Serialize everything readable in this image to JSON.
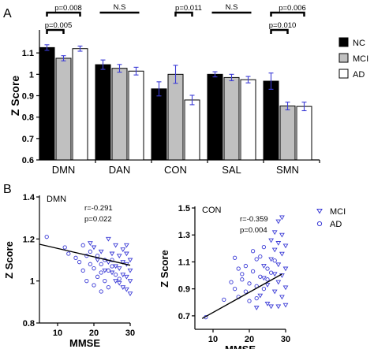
{
  "panel_labels": {
    "a": "A",
    "b": "B"
  },
  "chart_data": [
    {
      "type": "bar",
      "panel": "A",
      "categories": [
        "DMN",
        "DAN",
        "CON",
        "SAL",
        "SMN"
      ],
      "series": [
        {
          "name": "NC",
          "values": [
            1.125,
            1.045,
            0.932,
            1.0,
            0.968
          ],
          "errors": [
            0.013,
            0.022,
            0.033,
            0.012,
            0.038
          ],
          "color": "#000000"
        },
        {
          "name": "MCI",
          "values": [
            1.075,
            1.028,
            1.0,
            0.985,
            0.852
          ],
          "errors": [
            0.012,
            0.018,
            0.042,
            0.015,
            0.018
          ],
          "color": "#c0c0c0"
        },
        {
          "name": "AD",
          "values": [
            1.12,
            1.015,
            0.88,
            0.975,
            0.85
          ],
          "errors": [
            0.012,
            0.018,
            0.022,
            0.015,
            0.02
          ],
          "color": "#ffffff"
        }
      ],
      "ylabel": "Z Score",
      "ylim": [
        0.6,
        1.2
      ],
      "yticks": [
        "0.6",
        "0.7",
        "0.8",
        "0.9",
        "1",
        "1.1"
      ],
      "error_bar_color": "#3b3bd6",
      "legend_position": "right",
      "significance": [
        {
          "category": "DMN",
          "pairs": [
            {
              "from": "NC",
              "to": "AD",
              "label": "p=0.008"
            },
            {
              "from": "NC",
              "to": "MCI",
              "label": "p=0.005"
            }
          ]
        },
        {
          "category": "DAN",
          "label": "N.S"
        },
        {
          "category": "CON",
          "pairs": [
            {
              "from": "MCI",
              "to": "AD",
              "label": "p=0.011"
            }
          ]
        },
        {
          "category": "SAL",
          "label": "N.S"
        },
        {
          "category": "SMN",
          "pairs": [
            {
              "from": "NC",
              "to": "AD",
              "label": "p=0.006"
            },
            {
              "from": "NC",
              "to": "MCI",
              "label": "p=0.010"
            }
          ]
        }
      ]
    },
    {
      "type": "scatter",
      "panel": "B-left",
      "title": "DMN",
      "xlabel": "MMSE",
      "ylabel": "Z Score",
      "xlim": [
        5,
        30
      ],
      "ylim": [
        0.8,
        1.4
      ],
      "xticks": [
        "10",
        "20",
        "30"
      ],
      "yticks": [
        "0.8",
        "1",
        "1.2",
        "1.4"
      ],
      "annotation": [
        "r=-0.291",
        "p=0.022"
      ],
      "regression": {
        "x": [
          5,
          30
        ],
        "y": [
          1.175,
          1.075
        ]
      },
      "color": "#3b3bd6",
      "series": [
        {
          "name": "MCI",
          "marker": "triangle-down",
          "points": [
            [
              19,
              1.18
            ],
            [
              20,
              1.16
            ],
            [
              21,
              1.1
            ],
            [
              22,
              1.14
            ],
            [
              23,
              1.05
            ],
            [
              24,
              1.2
            ],
            [
              24,
              1.09
            ],
            [
              25,
              1.13
            ],
            [
              25,
              1.04
            ],
            [
              26,
              1.17
            ],
            [
              26,
              1.07
            ],
            [
              26,
              1.0
            ],
            [
              27,
              1.12
            ],
            [
              27,
              1.06
            ],
            [
              27,
              0.99
            ],
            [
              28,
              1.15
            ],
            [
              28,
              1.09
            ],
            [
              28,
              1.03
            ],
            [
              28,
              0.97
            ],
            [
              29,
              1.13
            ],
            [
              29,
              1.08
            ],
            [
              29,
              1.02
            ],
            [
              29,
              0.96
            ],
            [
              29,
              1.17
            ],
            [
              30,
              1.1
            ],
            [
              30,
              1.05
            ],
            [
              30,
              1.0
            ],
            [
              30,
              0.94
            ]
          ]
        },
        {
          "name": "AD",
          "marker": "circle",
          "points": [
            [
              7,
              1.21
            ],
            [
              12,
              1.16
            ],
            [
              13,
              1.13
            ],
            [
              15,
              1.11
            ],
            [
              16,
              1.09
            ],
            [
              17,
              1.05
            ],
            [
              17,
              1.17
            ],
            [
              18,
              1.12
            ],
            [
              18,
              1.0
            ],
            [
              19,
              1.08
            ],
            [
              19,
              1.14
            ],
            [
              20,
              1.06
            ],
            [
              20,
              0.98
            ],
            [
              21,
              1.12
            ],
            [
              21,
              1.02
            ],
            [
              22,
              1.08
            ],
            [
              22,
              1.04
            ],
            [
              22,
              0.95
            ],
            [
              23,
              1.1
            ],
            [
              23,
              1.0
            ],
            [
              24,
              1.05
            ],
            [
              24,
              0.97
            ],
            [
              25,
              1.07
            ],
            [
              25,
              1.1
            ],
            [
              26,
              1.03
            ],
            [
              27,
              1.01
            ]
          ]
        }
      ]
    },
    {
      "type": "scatter",
      "panel": "B-right",
      "title": "CON",
      "xlabel": "MMSE",
      "ylabel": "Z Score",
      "xlim": [
        5,
        30
      ],
      "ylim": [
        0.6,
        1.5
      ],
      "xticks": [
        "10",
        "20",
        "30"
      ],
      "yticks": [
        "0.7",
        "0.9",
        "1.1",
        "1.3",
        "1.5"
      ],
      "annotation": [
        "r=-0.359",
        "p=0.004"
      ],
      "regression": {
        "x": [
          7,
          29
        ],
        "y": [
          0.68,
          1.01
        ]
      },
      "color": "#3b3bd6",
      "series": [
        {
          "name": "MCI",
          "marker": "triangle-down",
          "points": [
            [
              22,
              0.76
            ],
            [
              23,
              0.85
            ],
            [
              24,
              0.98
            ],
            [
              24,
              1.07
            ],
            [
              25,
              0.79
            ],
            [
              25,
              0.93
            ],
            [
              26,
              1.12
            ],
            [
              26,
              1.26
            ],
            [
              26,
              0.77
            ],
            [
              27,
              1.01
            ],
            [
              27,
              0.88
            ],
            [
              27,
              1.19
            ],
            [
              27,
              1.32
            ],
            [
              28,
              0.77
            ],
            [
              28,
              0.95
            ],
            [
              28,
              1.08
            ],
            [
              28,
              1.4
            ],
            [
              28,
              1.24
            ],
            [
              29,
              0.84
            ],
            [
              29,
              1.0
            ],
            [
              29,
              1.16
            ],
            [
              29,
              1.43
            ],
            [
              29,
              1.3
            ],
            [
              30,
              0.91
            ],
            [
              30,
              1.05
            ],
            [
              30,
              1.22
            ],
            [
              30,
              0.78
            ]
          ]
        },
        {
          "name": "AD",
          "marker": "circle",
          "points": [
            [
              8,
              0.69
            ],
            [
              13,
              0.82
            ],
            [
              15,
              0.95
            ],
            [
              16,
              1.13
            ],
            [
              16,
              0.9
            ],
            [
              17,
              1.05
            ],
            [
              17,
              0.84
            ],
            [
              18,
              0.97
            ],
            [
              18,
              1.01
            ],
            [
              19,
              0.88
            ],
            [
              19,
              1.07
            ],
            [
              20,
              0.94
            ],
            [
              20,
              0.81
            ],
            [
              21,
              1.03
            ],
            [
              21,
              1.18
            ],
            [
              22,
              0.92
            ],
            [
              22,
              1.12
            ],
            [
              22,
              0.83
            ],
            [
              23,
              0.99
            ],
            [
              23,
              1.14
            ],
            [
              24,
              0.9
            ],
            [
              24,
              1.21
            ],
            [
              25,
              1.05
            ],
            [
              25,
              0.97
            ],
            [
              26,
              1.02
            ],
            [
              27,
              1.11
            ]
          ]
        }
      ]
    }
  ]
}
